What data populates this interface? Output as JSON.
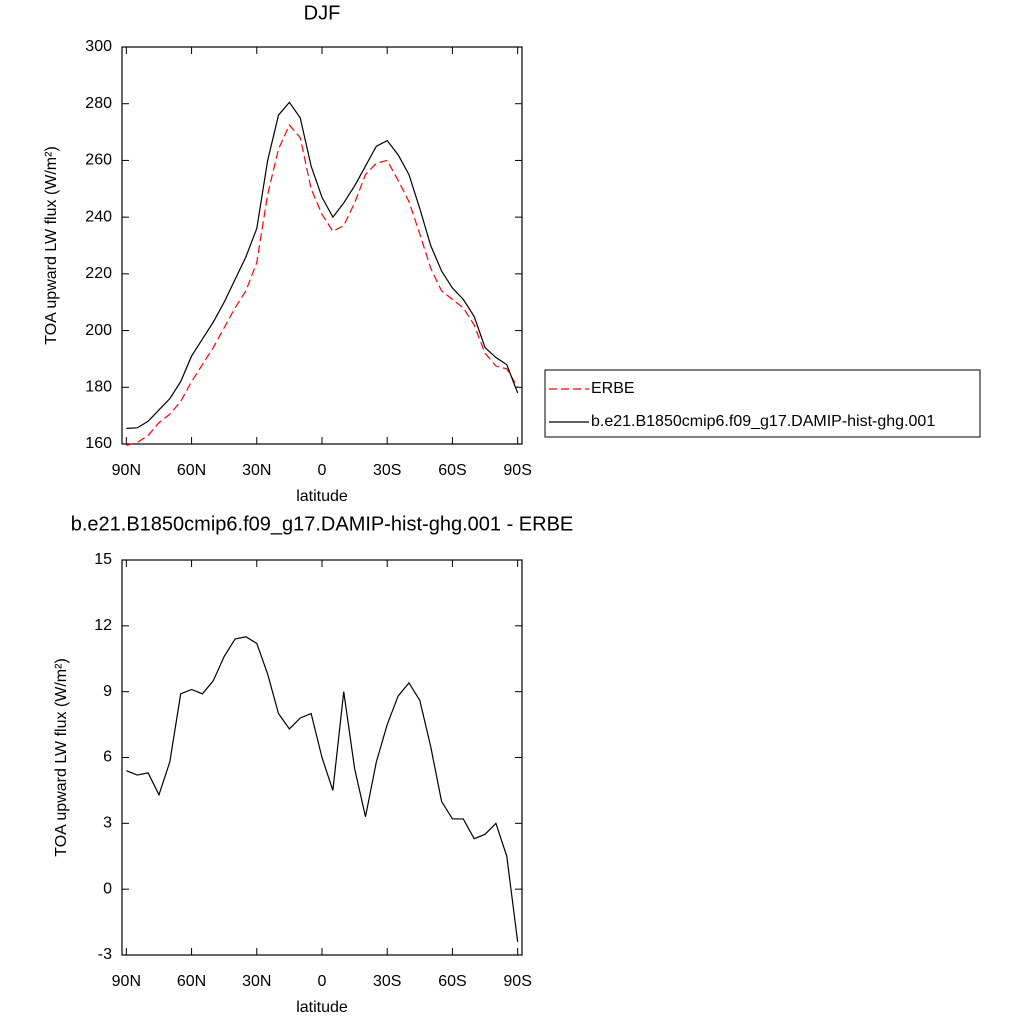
{
  "chart_data": [
    {
      "type": "line",
      "title": "DJF",
      "xlabel": "latitude",
      "ylabel": "TOA upward LW flux (W/m²)",
      "x": [
        90,
        85,
        80,
        75,
        70,
        65,
        60,
        55,
        50,
        45,
        40,
        35,
        30,
        25,
        20,
        15,
        10,
        5,
        0,
        -5,
        -10,
        -15,
        -20,
        -25,
        -30,
        -35,
        -40,
        -45,
        -50,
        -55,
        -60,
        -65,
        -70,
        -75,
        -80,
        -85,
        -90
      ],
      "xlim": [
        92,
        -92
      ],
      "xticks": [
        {
          "value": 90,
          "label": "90N"
        },
        {
          "value": 60,
          "label": "60N"
        },
        {
          "value": 30,
          "label": "30N"
        },
        0,
        {
          "value": -30,
          "label": "30S"
        },
        {
          "value": -60,
          "label": "60S"
        },
        {
          "value": -90,
          "label": "90S"
        }
      ],
      "ylim": [
        160,
        300
      ],
      "yticks": [
        160,
        180,
        200,
        220,
        240,
        260,
        280,
        300
      ],
      "legend": "right",
      "series": [
        {
          "name": "ERBE",
          "color": "#ff0000",
          "dash": true,
          "values": [
            159.5,
            160.5,
            163,
            167.5,
            170.5,
            175,
            182,
            188,
            194,
            201,
            208,
            214,
            224,
            248,
            264,
            272.5,
            268,
            250,
            241,
            235,
            237,
            245,
            255,
            259,
            260,
            253,
            245.5,
            234,
            222,
            214,
            211,
            208,
            202,
            192,
            187.5,
            186.5,
            180
          ]
        },
        {
          "name": "b.e21.B1850cmip6.f09_g17.DAMIP-hist-ghg.001",
          "color": "#000000",
          "dash": false,
          "values": [
            165.5,
            165.7,
            168,
            172,
            176,
            182,
            191,
            197,
            203,
            210,
            218,
            226,
            236,
            260,
            276,
            280.5,
            275,
            258,
            247,
            240,
            245,
            251,
            258,
            265,
            267,
            262,
            255,
            243,
            230,
            221,
            215,
            211,
            205,
            194,
            190.5,
            188,
            178
          ]
        }
      ]
    },
    {
      "type": "line",
      "title": "b.e21.B1850cmip6.f09_g17.DAMIP-hist-ghg.001 - ERBE",
      "xlabel": "latitude",
      "ylabel": "TOA upward LW flux (W/m²)",
      "x": [
        90,
        85,
        80,
        75,
        70,
        65,
        60,
        55,
        50,
        45,
        40,
        35,
        30,
        25,
        20,
        15,
        10,
        5,
        0,
        -5,
        -10,
        -15,
        -20,
        -25,
        -30,
        -35,
        -40,
        -45,
        -50,
        -55,
        -60,
        -65,
        -70,
        -75,
        -80,
        -85,
        -90
      ],
      "xlim": [
        92,
        -92
      ],
      "xticks": [
        {
          "value": 90,
          "label": "90N"
        },
        {
          "value": 60,
          "label": "60N"
        },
        {
          "value": 30,
          "label": "30N"
        },
        0,
        {
          "value": -30,
          "label": "30S"
        },
        {
          "value": -60,
          "label": "60S"
        },
        {
          "value": -90,
          "label": "90S"
        }
      ],
      "ylim": [
        -3,
        15
      ],
      "yticks": [
        -3,
        0,
        3,
        6,
        9,
        12,
        15
      ],
      "series": [
        {
          "color": "#000000",
          "dash": false,
          "values": [
            5.4,
            5.2,
            5.3,
            4.3,
            5.8,
            8.9,
            9.1,
            8.9,
            9.5,
            10.6,
            11.4,
            11.5,
            11.2,
            9.8,
            8.0,
            7.3,
            7.8,
            8.0,
            6.0,
            4.5,
            9.0,
            5.5,
            3.3,
            5.8,
            7.5,
            8.8,
            9.4,
            8.6,
            6.5,
            4.0,
            3.2,
            3.2,
            2.3,
            2.5,
            3.0,
            1.5,
            -2.4
          ]
        }
      ]
    }
  ]
}
